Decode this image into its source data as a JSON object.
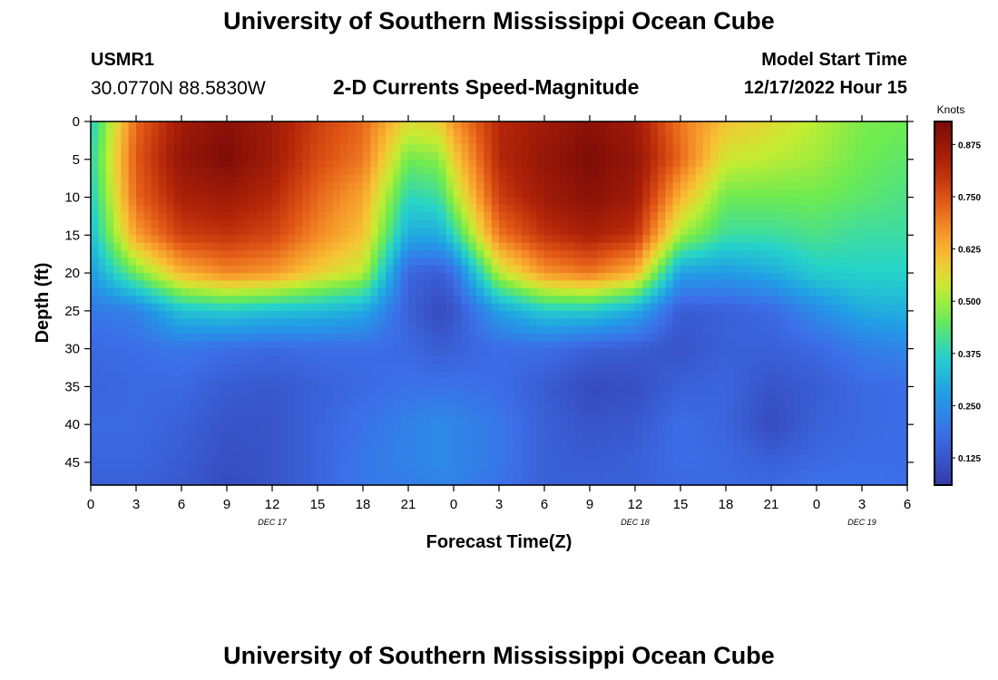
{
  "header": {
    "title": "University of Southern Mississippi Ocean Cube",
    "station": "USMR1",
    "coords": "30.0770N  88.5830W",
    "subtitle": "2-D Currents Speed-Magnitude",
    "start_label": "Model Start Time",
    "start_value": "12/17/2022 Hour 15"
  },
  "footer": {
    "title": "University of Southern Mississippi Ocean Cube"
  },
  "chart_data": {
    "type": "heatmap",
    "title": "2-D Currents Speed-Magnitude",
    "xlabel": "Forecast Time(Z)",
    "ylabel": "Depth (ft)",
    "xlim": [
      0,
      54
    ],
    "ylim": [
      48,
      0
    ],
    "x_ticks": [
      "0",
      "3",
      "6",
      "9",
      "12",
      "15",
      "18",
      "21",
      "0",
      "3",
      "6",
      "9",
      "12",
      "15",
      "18",
      "21",
      "0",
      "3",
      "6"
    ],
    "y_ticks": [
      0,
      5,
      10,
      15,
      20,
      25,
      30,
      35,
      40,
      45
    ],
    "y_tick_labels": [
      "0",
      "5",
      "10",
      "15",
      "20",
      "25",
      "30",
      "35",
      "40",
      "45"
    ],
    "date_labels": [
      {
        "label": "DEC 17",
        "x": 12
      },
      {
        "label": "DEC 18",
        "x": 36
      },
      {
        "label": "DEC 19",
        "x": 51
      }
    ],
    "colorbar": {
      "label": "Knots",
      "range": [
        0.06,
        0.93
      ],
      "ticks": [
        0.125,
        0.25,
        0.375,
        0.5,
        0.625,
        0.75,
        0.875
      ],
      "tick_labels": [
        "0.125",
        "0.250",
        "0.375",
        "0.500",
        "0.625",
        "0.750",
        "0.875"
      ]
    },
    "speed_profiles_knots": {
      "depth_ft": [
        0,
        5,
        10,
        15,
        20,
        25,
        30,
        35,
        40,
        45,
        48
      ],
      "series": [
        {
          "time_h": 0,
          "values": [
            0.36,
            0.38,
            0.36,
            0.33,
            0.27,
            0.2,
            0.17,
            0.16,
            0.17,
            0.16,
            0.15
          ]
        },
        {
          "time_h": 3,
          "values": [
            0.72,
            0.74,
            0.72,
            0.65,
            0.46,
            0.22,
            0.18,
            0.17,
            0.17,
            0.16,
            0.15
          ]
        },
        {
          "time_h": 6,
          "values": [
            0.86,
            0.88,
            0.84,
            0.78,
            0.62,
            0.34,
            0.2,
            0.17,
            0.15,
            0.14,
            0.13
          ]
        },
        {
          "time_h": 9,
          "values": [
            0.9,
            0.92,
            0.86,
            0.8,
            0.68,
            0.36,
            0.18,
            0.14,
            0.12,
            0.11,
            0.1
          ]
        },
        {
          "time_h": 12,
          "values": [
            0.86,
            0.86,
            0.82,
            0.77,
            0.66,
            0.34,
            0.17,
            0.13,
            0.12,
            0.12,
            0.12
          ]
        },
        {
          "time_h": 15,
          "values": [
            0.78,
            0.76,
            0.72,
            0.68,
            0.58,
            0.33,
            0.18,
            0.15,
            0.16,
            0.16,
            0.16
          ]
        },
        {
          "time_h": 18,
          "values": [
            0.72,
            0.7,
            0.64,
            0.6,
            0.52,
            0.3,
            0.18,
            0.17,
            0.19,
            0.2,
            0.2
          ]
        },
        {
          "time_h": 21,
          "values": [
            0.56,
            0.46,
            0.38,
            0.3,
            0.16,
            0.15,
            0.17,
            0.19,
            0.22,
            0.22,
            0.21
          ]
        },
        {
          "time_h": 23,
          "values": [
            0.58,
            0.48,
            0.4,
            0.3,
            0.14,
            0.1,
            0.14,
            0.19,
            0.24,
            0.24,
            0.22
          ]
        },
        {
          "time_h": 24,
          "values": [
            0.66,
            0.58,
            0.5,
            0.38,
            0.18,
            0.12,
            0.15,
            0.19,
            0.23,
            0.23,
            0.22
          ]
        },
        {
          "time_h": 27,
          "values": [
            0.82,
            0.82,
            0.78,
            0.7,
            0.52,
            0.28,
            0.18,
            0.18,
            0.2,
            0.2,
            0.19
          ]
        },
        {
          "time_h": 30,
          "values": [
            0.86,
            0.88,
            0.86,
            0.8,
            0.66,
            0.36,
            0.18,
            0.14,
            0.15,
            0.15,
            0.15
          ]
        },
        {
          "time_h": 33,
          "values": [
            0.9,
            0.92,
            0.9,
            0.84,
            0.7,
            0.36,
            0.15,
            0.1,
            0.12,
            0.14,
            0.15
          ]
        },
        {
          "time_h": 36,
          "values": [
            0.86,
            0.88,
            0.86,
            0.8,
            0.62,
            0.3,
            0.14,
            0.11,
            0.13,
            0.15,
            0.15
          ]
        },
        {
          "time_h": 39,
          "values": [
            0.7,
            0.72,
            0.62,
            0.5,
            0.28,
            0.14,
            0.12,
            0.15,
            0.18,
            0.18,
            0.17
          ]
        },
        {
          "time_h": 42,
          "values": [
            0.6,
            0.54,
            0.46,
            0.4,
            0.27,
            0.15,
            0.15,
            0.16,
            0.16,
            0.17,
            0.17
          ]
        },
        {
          "time_h": 45,
          "values": [
            0.56,
            0.52,
            0.46,
            0.4,
            0.3,
            0.17,
            0.15,
            0.12,
            0.1,
            0.15,
            0.17
          ]
        },
        {
          "time_h": 48,
          "values": [
            0.52,
            0.5,
            0.46,
            0.42,
            0.36,
            0.24,
            0.17,
            0.14,
            0.15,
            0.17,
            0.19
          ]
        },
        {
          "time_h": 51,
          "values": [
            0.47,
            0.46,
            0.44,
            0.4,
            0.37,
            0.3,
            0.21,
            0.17,
            0.17,
            0.18,
            0.19
          ]
        },
        {
          "time_h": 54,
          "values": [
            0.46,
            0.44,
            0.42,
            0.4,
            0.37,
            0.31,
            0.23,
            0.18,
            0.18,
            0.18,
            0.18
          ]
        }
      ]
    }
  }
}
